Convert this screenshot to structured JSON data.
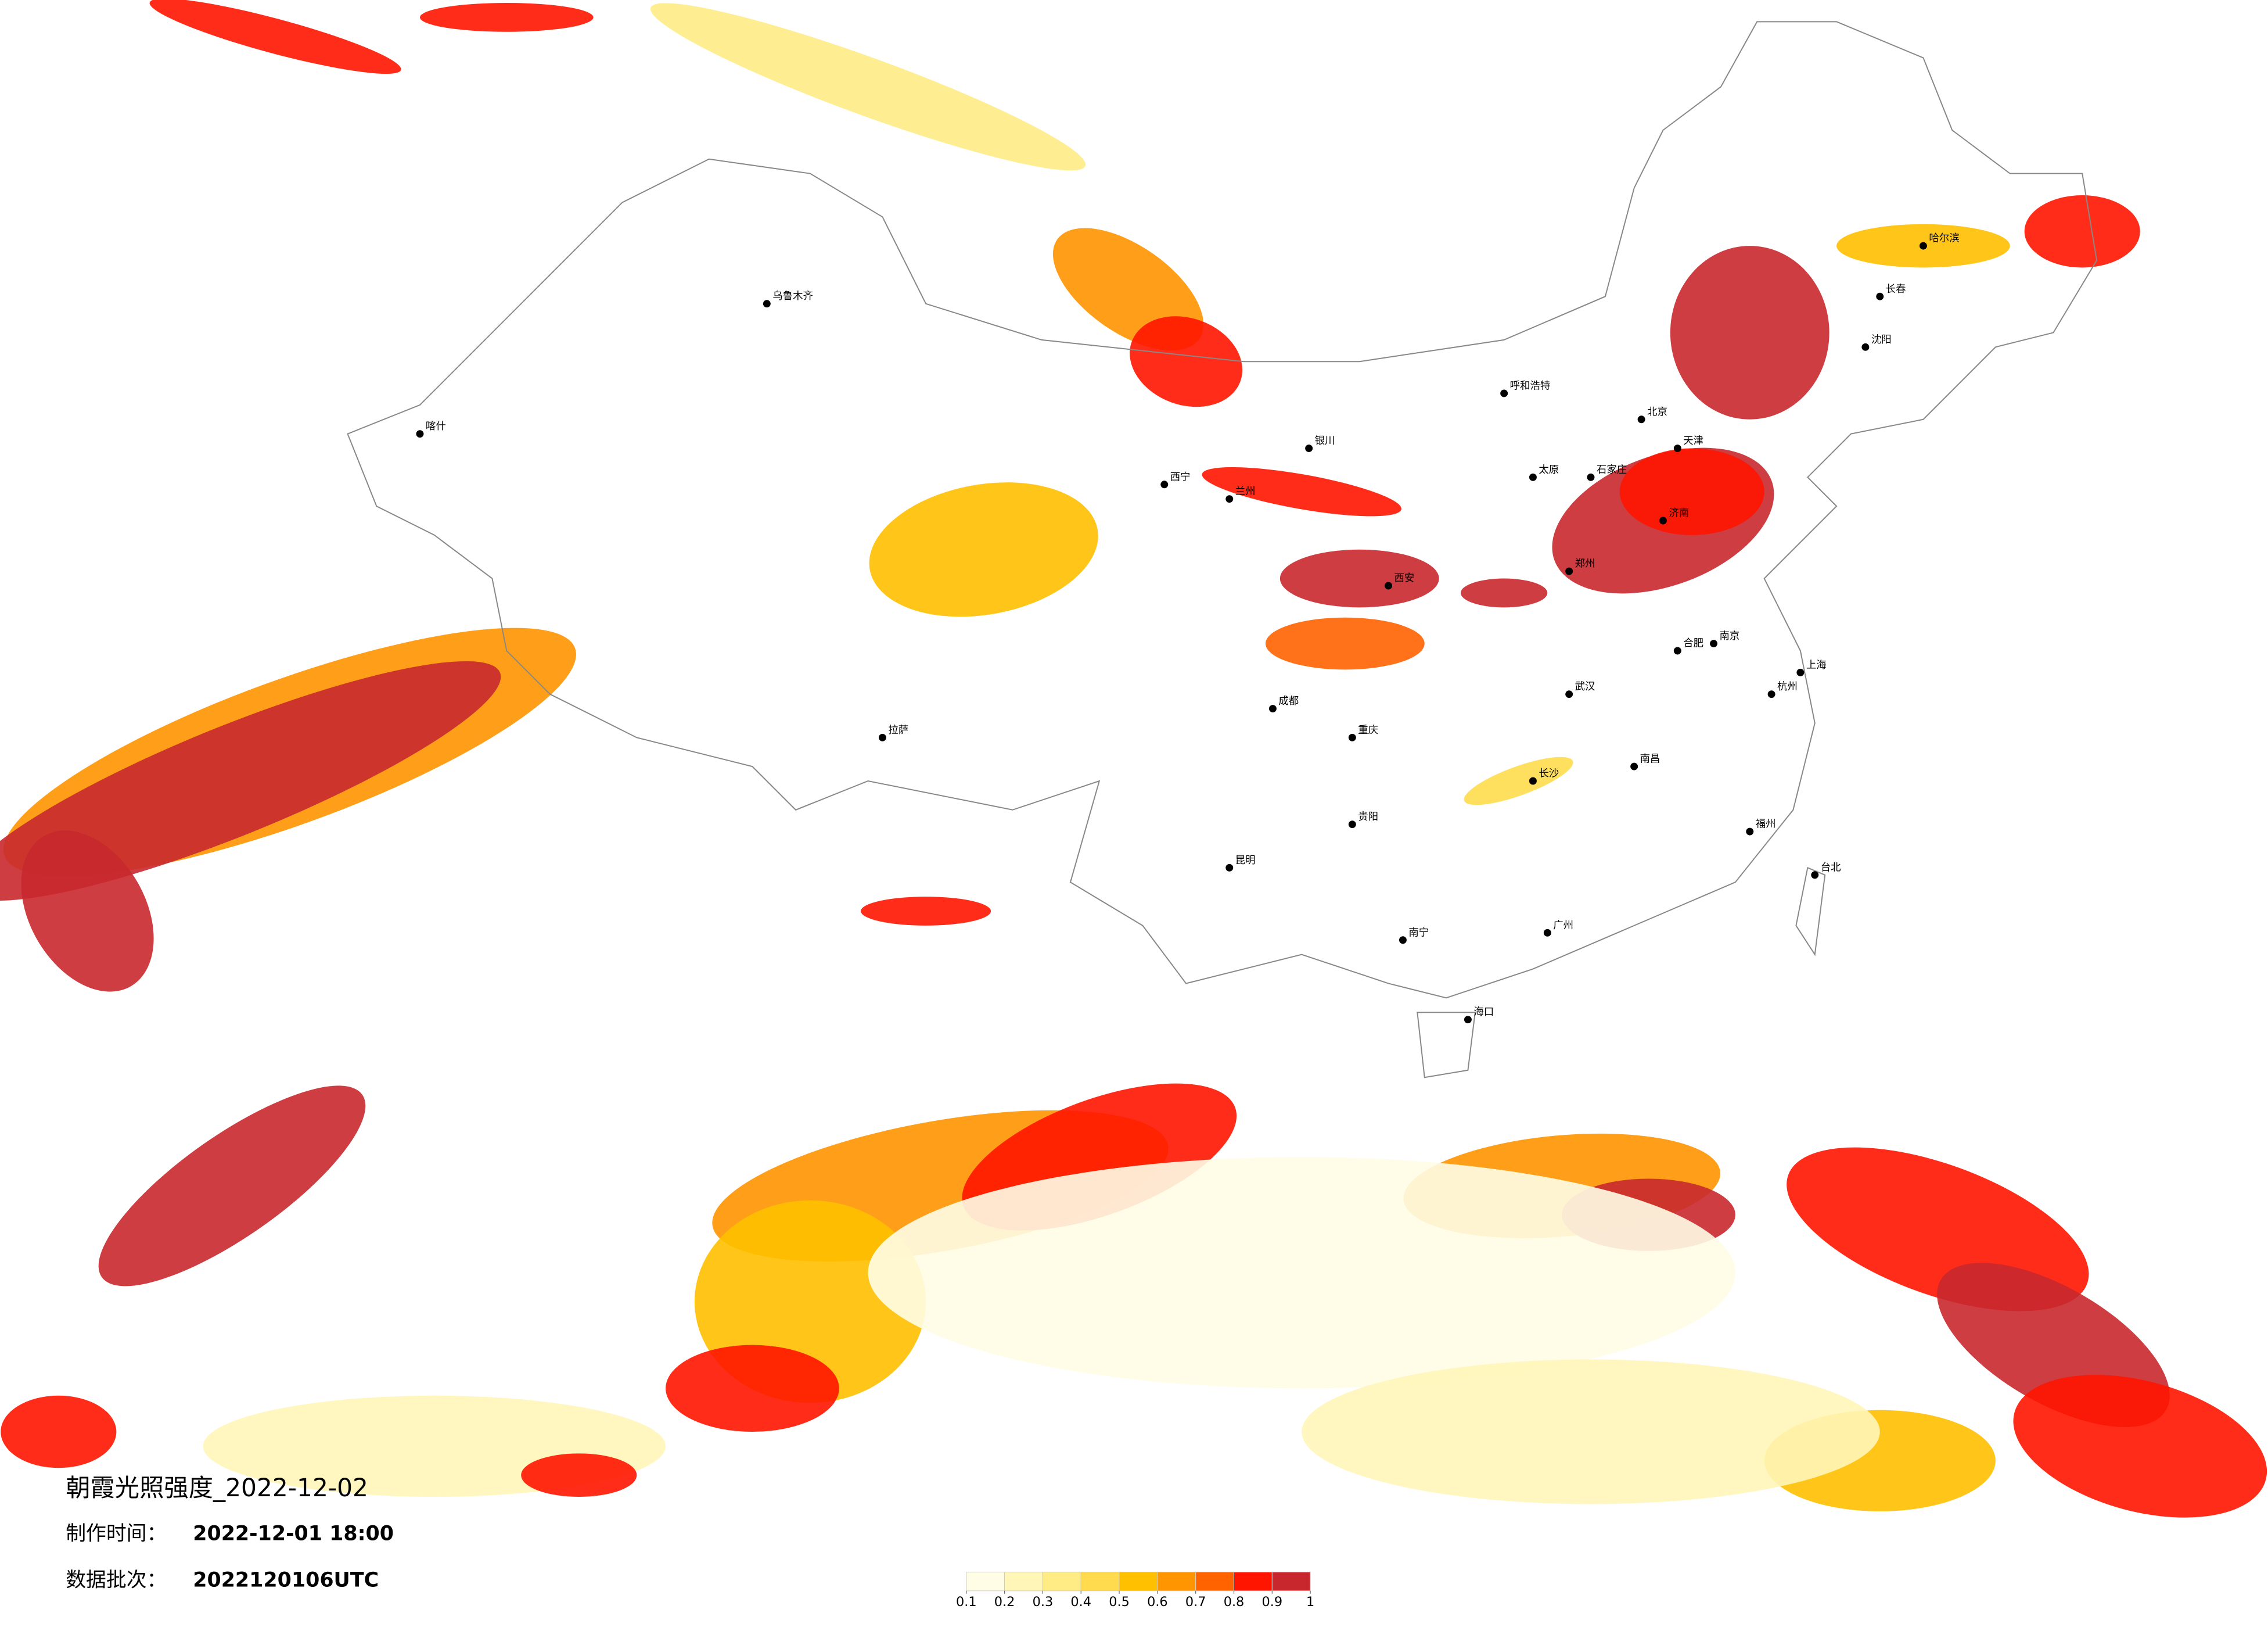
{
  "header": {
    "title": "朝霞光照强度_2022-12-02",
    "made_label": "制作时间：",
    "made_time": "2022-12-01 18:00",
    "batch_label": "数据批次：",
    "batch": "2022120106UTC"
  },
  "legend": {
    "colors": [
      "#fffde6",
      "#fff6b8",
      "#ffec85",
      "#ffdb4d",
      "#ffc000",
      "#ff9500",
      "#ff6300",
      "#ff1500",
      "#c8282d"
    ],
    "ticks": [
      0.1,
      0.2,
      0.3,
      0.4,
      0.5,
      0.6,
      0.7,
      0.8,
      0.9,
      1
    ]
  },
  "map": {
    "cities": [
      "北京",
      "天津",
      "石家庄",
      "济南",
      "郑州",
      "西安",
      "兰州",
      "西宁",
      "银川",
      "呼和浩特",
      "太原",
      "沈阳",
      "长春",
      "哈尔滨",
      "乌鲁木齐",
      "拉萨",
      "成都",
      "重庆",
      "贵阳",
      "昆明",
      "南宁",
      "广州",
      "福州",
      "杭州",
      "南京",
      "上海",
      "武汉",
      "长沙",
      "南昌",
      "合肥",
      "海口",
      "台北",
      "喀什"
    ]
  }
}
